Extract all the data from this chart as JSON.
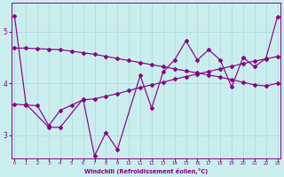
{
  "xlabel": "Windchill (Refroidissement éolien,°C)",
  "bg_color": "#caeeed",
  "line_color": "#880088",
  "grid_color": "#aadddd",
  "x_ticks": [
    0,
    1,
    2,
    3,
    4,
    5,
    6,
    7,
    8,
    9,
    10,
    11,
    12,
    13,
    14,
    15,
    16,
    17,
    18,
    19,
    20,
    21,
    22,
    23
  ],
  "y_ticks": [
    3,
    4,
    5
  ],
  "ylim": [
    2.55,
    5.55
  ],
  "xlim": [
    -0.3,
    23.3
  ],
  "series_zigzag_x": [
    0,
    1,
    3,
    4,
    6,
    7,
    8,
    9,
    11,
    12,
    13,
    14,
    15,
    16,
    17,
    18,
    19,
    20,
    21,
    22,
    23
  ],
  "series_zigzag_y": [
    5.3,
    3.6,
    3.15,
    3.15,
    3.7,
    2.6,
    3.05,
    2.72,
    4.15,
    3.52,
    4.22,
    4.45,
    4.82,
    4.45,
    4.65,
    4.45,
    3.93,
    4.5,
    4.32,
    4.48,
    5.28
  ],
  "series_upper_x": [
    0,
    1,
    2,
    3,
    4,
    5,
    6,
    7,
    8,
    9,
    10,
    11,
    12,
    13,
    14,
    15,
    16,
    17,
    18,
    19,
    20,
    21,
    22,
    23
  ],
  "series_upper_y": [
    4.68,
    4.68,
    4.67,
    4.66,
    4.65,
    4.62,
    4.59,
    4.56,
    4.52,
    4.48,
    4.44,
    4.4,
    4.36,
    4.32,
    4.28,
    4.24,
    4.2,
    4.16,
    4.12,
    4.07,
    4.02,
    3.97,
    3.95,
    4.0
  ],
  "series_lower_x": [
    0,
    1,
    2,
    3,
    4,
    5,
    6,
    7,
    8,
    9,
    10,
    11,
    12,
    13,
    14,
    15,
    16,
    17,
    18,
    19,
    20,
    21,
    22,
    23
  ],
  "series_lower_y": [
    3.6,
    3.58,
    3.57,
    3.18,
    3.48,
    3.58,
    3.68,
    3.7,
    3.75,
    3.8,
    3.86,
    3.92,
    3.97,
    4.02,
    4.08,
    4.13,
    4.18,
    4.23,
    4.28,
    4.33,
    4.38,
    4.43,
    4.47,
    4.52
  ]
}
